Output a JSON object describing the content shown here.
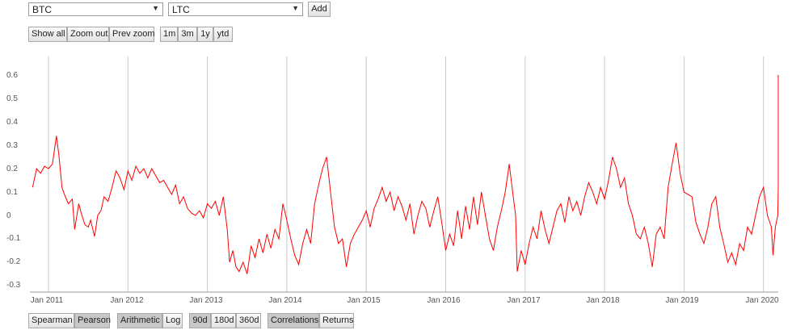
{
  "selectors": {
    "first": "BTC",
    "second": "LTC",
    "add_label": "Add"
  },
  "zoom": {
    "show_all": "Show all",
    "zoom_out": "Zoom out",
    "prev_zoom": "Prev zoom",
    "r1m": "1m",
    "r3m": "3m",
    "r1y": "1y",
    "ytd": "ytd"
  },
  "bottom": {
    "spearman": "Spearman",
    "pearson": "Pearson",
    "arithmetic": "Arithmetic",
    "log": "Log",
    "d90": "90d",
    "d180": "180d",
    "d360": "360d",
    "correlations": "Correlations",
    "returns": "Returns",
    "active": [
      "Pearson",
      "Arithmetic",
      "90d",
      "Correlations"
    ]
  },
  "colors": {
    "line": "#ff0000",
    "grid": "#c8c8c8"
  },
  "chart_data": {
    "type": "line",
    "x_ticks": [
      "Jan 2011",
      "Jan 2012",
      "Jan 2013",
      "Jan 2014",
      "Jan 2015",
      "Jan 2016",
      "Jan 2017",
      "Jan 2018",
      "Jan 2019",
      "Jan 2020"
    ],
    "y_ticks": [
      "0.6",
      "0.5",
      "0.4",
      "0.3",
      "0.2",
      "0.1",
      "0",
      "-0.1",
      "-0.2",
      "-0.3"
    ],
    "ylim": [
      -0.3,
      0.6
    ],
    "series": [
      {
        "points": [
          [
            2010.8,
            0.12
          ],
          [
            2010.85,
            0.2
          ],
          [
            2010.9,
            0.18
          ],
          [
            2010.95,
            0.21
          ],
          [
            2011.0,
            0.2
          ],
          [
            2011.05,
            0.22
          ],
          [
            2011.1,
            0.34
          ],
          [
            2011.13,
            0.26
          ],
          [
            2011.17,
            0.12
          ],
          [
            2011.2,
            0.09
          ],
          [
            2011.25,
            0.05
          ],
          [
            2011.3,
            0.07
          ],
          [
            2011.33,
            -0.06
          ],
          [
            2011.38,
            0.05
          ],
          [
            2011.42,
            0.0
          ],
          [
            2011.46,
            -0.04
          ],
          [
            2011.5,
            -0.05
          ],
          [
            2011.53,
            -0.02
          ],
          [
            2011.58,
            -0.09
          ],
          [
            2011.62,
            0.0
          ],
          [
            2011.66,
            0.02
          ],
          [
            2011.7,
            0.08
          ],
          [
            2011.75,
            0.06
          ],
          [
            2011.8,
            0.12
          ],
          [
            2011.85,
            0.19
          ],
          [
            2011.9,
            0.16
          ],
          [
            2011.95,
            0.11
          ],
          [
            2012.0,
            0.19
          ],
          [
            2012.05,
            0.15
          ],
          [
            2012.1,
            0.21
          ],
          [
            2012.15,
            0.18
          ],
          [
            2012.2,
            0.2
          ],
          [
            2012.25,
            0.16
          ],
          [
            2012.3,
            0.2
          ],
          [
            2012.35,
            0.17
          ],
          [
            2012.4,
            0.14
          ],
          [
            2012.45,
            0.15
          ],
          [
            2012.5,
            0.12
          ],
          [
            2012.55,
            0.09
          ],
          [
            2012.6,
            0.13
          ],
          [
            2012.65,
            0.05
          ],
          [
            2012.7,
            0.08
          ],
          [
            2012.75,
            0.03
          ],
          [
            2012.8,
            0.01
          ],
          [
            2012.85,
            0.0
          ],
          [
            2012.9,
            0.02
          ],
          [
            2012.95,
            -0.01
          ],
          [
            2013.0,
            0.05
          ],
          [
            2013.05,
            0.03
          ],
          [
            2013.1,
            0.06
          ],
          [
            2013.15,
            0.0
          ],
          [
            2013.2,
            0.08
          ],
          [
            2013.25,
            -0.06
          ],
          [
            2013.28,
            -0.2
          ],
          [
            2013.32,
            -0.15
          ],
          [
            2013.36,
            -0.22
          ],
          [
            2013.4,
            -0.24
          ],
          [
            2013.45,
            -0.2
          ],
          [
            2013.5,
            -0.25
          ],
          [
            2013.55,
            -0.13
          ],
          [
            2013.6,
            -0.18
          ],
          [
            2013.65,
            -0.1
          ],
          [
            2013.7,
            -0.16
          ],
          [
            2013.75,
            -0.08
          ],
          [
            2013.8,
            -0.14
          ],
          [
            2013.85,
            -0.06
          ],
          [
            2013.9,
            -0.1
          ],
          [
            2013.95,
            0.05
          ],
          [
            2014.0,
            -0.02
          ],
          [
            2014.05,
            -0.1
          ],
          [
            2014.1,
            -0.17
          ],
          [
            2014.15,
            -0.21
          ],
          [
            2014.2,
            -0.12
          ],
          [
            2014.25,
            -0.06
          ],
          [
            2014.3,
            -0.12
          ],
          [
            2014.35,
            0.05
          ],
          [
            2014.4,
            0.13
          ],
          [
            2014.45,
            0.2
          ],
          [
            2014.5,
            0.25
          ],
          [
            2014.55,
            0.1
          ],
          [
            2014.6,
            -0.05
          ],
          [
            2014.65,
            -0.12
          ],
          [
            2014.7,
            -0.1
          ],
          [
            2014.75,
            -0.22
          ],
          [
            2014.8,
            -0.12
          ],
          [
            2014.85,
            -0.08
          ],
          [
            2014.9,
            -0.05
          ],
          [
            2014.95,
            -0.02
          ],
          [
            2015.0,
            0.02
          ],
          [
            2015.05,
            -0.05
          ],
          [
            2015.1,
            0.03
          ],
          [
            2015.15,
            0.07
          ],
          [
            2015.2,
            0.12
          ],
          [
            2015.25,
            0.06
          ],
          [
            2015.3,
            0.1
          ],
          [
            2015.35,
            0.02
          ],
          [
            2015.4,
            0.08
          ],
          [
            2015.45,
            0.04
          ],
          [
            2015.5,
            -0.02
          ],
          [
            2015.55,
            0.05
          ],
          [
            2015.6,
            -0.08
          ],
          [
            2015.65,
            0.0
          ],
          [
            2015.7,
            0.06
          ],
          [
            2015.75,
            0.03
          ],
          [
            2015.8,
            -0.05
          ],
          [
            2015.85,
            0.02
          ],
          [
            2015.9,
            0.08
          ],
          [
            2015.95,
            -0.03
          ],
          [
            2016.0,
            -0.15
          ],
          [
            2016.05,
            -0.08
          ],
          [
            2016.1,
            -0.13
          ],
          [
            2016.15,
            0.02
          ],
          [
            2016.2,
            -0.1
          ],
          [
            2016.25,
            0.04
          ],
          [
            2016.3,
            -0.06
          ],
          [
            2016.35,
            0.08
          ],
          [
            2016.4,
            -0.04
          ],
          [
            2016.45,
            0.1
          ],
          [
            2016.5,
            0.0
          ],
          [
            2016.55,
            -0.1
          ],
          [
            2016.6,
            -0.15
          ],
          [
            2016.65,
            -0.05
          ],
          [
            2016.7,
            0.02
          ],
          [
            2016.75,
            0.1
          ],
          [
            2016.8,
            0.22
          ],
          [
            2016.85,
            0.08
          ],
          [
            2016.88,
            0.0
          ],
          [
            2016.9,
            -0.24
          ],
          [
            2016.95,
            -0.15
          ],
          [
            2017.0,
            -0.21
          ],
          [
            2017.05,
            -0.12
          ],
          [
            2017.1,
            -0.05
          ],
          [
            2017.15,
            -0.1
          ],
          [
            2017.2,
            0.02
          ],
          [
            2017.25,
            -0.06
          ],
          [
            2017.3,
            -0.12
          ],
          [
            2017.35,
            -0.05
          ],
          [
            2017.4,
            0.02
          ],
          [
            2017.45,
            0.05
          ],
          [
            2017.5,
            -0.03
          ],
          [
            2017.55,
            0.08
          ],
          [
            2017.6,
            0.02
          ],
          [
            2017.65,
            0.06
          ],
          [
            2017.7,
            0.0
          ],
          [
            2017.75,
            0.08
          ],
          [
            2017.8,
            0.14
          ],
          [
            2017.85,
            0.1
          ],
          [
            2017.9,
            0.05
          ],
          [
            2017.95,
            0.12
          ],
          [
            2018.0,
            0.07
          ],
          [
            2018.05,
            0.15
          ],
          [
            2018.1,
            0.25
          ],
          [
            2018.15,
            0.2
          ],
          [
            2018.2,
            0.12
          ],
          [
            2018.25,
            0.16
          ],
          [
            2018.3,
            0.05
          ],
          [
            2018.35,
            0.0
          ],
          [
            2018.4,
            -0.08
          ],
          [
            2018.45,
            -0.1
          ],
          [
            2018.5,
            -0.05
          ],
          [
            2018.55,
            -0.12
          ],
          [
            2018.6,
            -0.22
          ],
          [
            2018.65,
            -0.08
          ],
          [
            2018.7,
            -0.05
          ],
          [
            2018.75,
            -0.1
          ],
          [
            2018.8,
            0.12
          ],
          [
            2018.85,
            0.22
          ],
          [
            2018.9,
            0.31
          ],
          [
            2018.95,
            0.18
          ],
          [
            2019.0,
            0.1
          ],
          [
            2019.05,
            0.09
          ],
          [
            2019.1,
            0.08
          ],
          [
            2019.15,
            -0.03
          ],
          [
            2019.2,
            -0.08
          ],
          [
            2019.25,
            -0.12
          ],
          [
            2019.3,
            -0.05
          ],
          [
            2019.35,
            0.05
          ],
          [
            2019.4,
            0.08
          ],
          [
            2019.45,
            -0.05
          ],
          [
            2019.5,
            -0.12
          ],
          [
            2019.55,
            -0.2
          ],
          [
            2019.6,
            -0.16
          ],
          [
            2019.65,
            -0.21
          ],
          [
            2019.7,
            -0.12
          ],
          [
            2019.75,
            -0.15
          ],
          [
            2019.8,
            -0.05
          ],
          [
            2019.85,
            -0.08
          ],
          [
            2019.9,
            0.0
          ],
          [
            2019.95,
            0.08
          ],
          [
            2020.0,
            0.12
          ],
          [
            2020.05,
            0.0
          ],
          [
            2020.1,
            -0.05
          ],
          [
            2020.12,
            -0.17
          ],
          [
            2020.15,
            -0.05
          ],
          [
            2020.18,
            0.0
          ],
          [
            2020.2,
            0.12
          ],
          [
            2020.22,
            0.3
          ],
          [
            2020.24,
            0.58
          ],
          [
            2020.25,
            0.6
          ]
        ]
      }
    ]
  }
}
